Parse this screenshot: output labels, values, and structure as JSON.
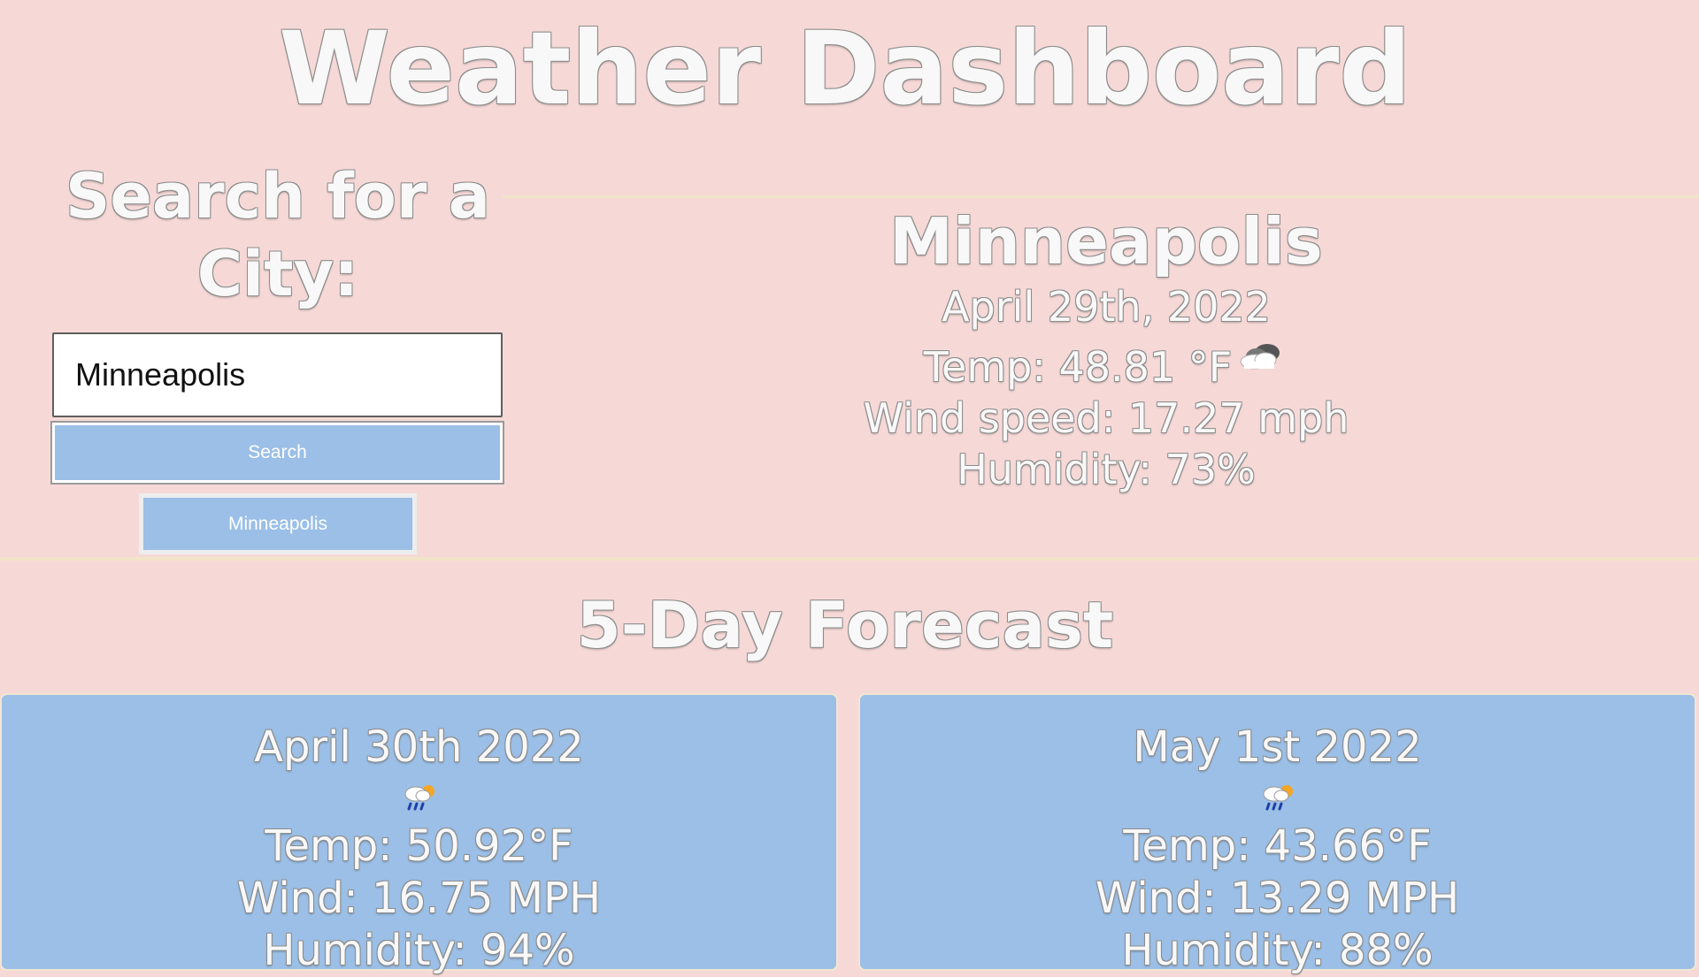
{
  "header": {
    "title": "Weather Dashboard"
  },
  "search": {
    "heading": "Search for a City:",
    "input_value": "Minneapolis",
    "button_label": "Search",
    "history": [
      "Minneapolis"
    ]
  },
  "current": {
    "city": "Minneapolis",
    "date": "April 29th, 2022",
    "temp": "Temp: 48.81 °F",
    "wind": "Wind speed: 17.27 mph",
    "humidity": "Humidity: 73%",
    "icon": "cloud-icon"
  },
  "forecast": {
    "heading": "5-Day Forecast",
    "days": [
      {
        "date": "April 30th 2022",
        "icon": "rain-sun-icon",
        "temp": "Temp: 50.92°F",
        "wind": "Wind: 16.75 MPH",
        "humidity": "Humidity: 94%"
      },
      {
        "date": "May 1st 2022",
        "icon": "rain-sun-icon",
        "temp": "Temp: 43.66°F",
        "wind": "Wind: 13.29 MPH",
        "humidity": "Humidity: 88%"
      }
    ]
  },
  "colors": {
    "background": "#f6d9d7",
    "card": "#9bbfe6",
    "divider": "#f2e4c8"
  }
}
